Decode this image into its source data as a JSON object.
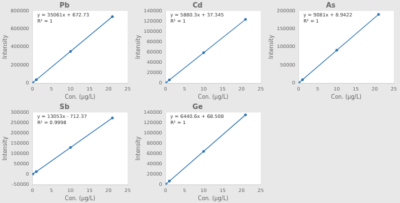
{
  "chart_data": [
    {
      "type": "line",
      "title": "Pb",
      "x_label": "Con. (μg/L)",
      "y_label": "Intensity",
      "annotations": [
        "y = 35061x + 672.73",
        "R² = 1"
      ],
      "series": [
        {
          "type": "line",
          "color": "#2E75B6",
          "x": [
            0,
            21
          ],
          "values": [
            672.73,
            736953.73
          ]
        },
        {
          "type": "scatter",
          "color": "#2E75B6",
          "x": [
            0.1,
            1,
            10,
            21
          ],
          "values": [
            4178.83,
            35733.73,
            351282.73,
            736953.73
          ]
        }
      ],
      "xlim": [
        0,
        25
      ],
      "xticks": [
        0,
        5,
        10,
        15,
        20,
        25
      ],
      "ylim": [
        0,
        800000
      ],
      "yticks": [
        0,
        200000,
        400000,
        600000,
        800000
      ],
      "grid": false
    },
    {
      "type": "line",
      "title": "Cd",
      "x_label": "Con. (μg/L)",
      "y_label": "Intensity",
      "annotations": [
        "y = 5880.3x + 37.345",
        "R² = 1"
      ],
      "series": [
        {
          "type": "line",
          "color": "#2E75B6",
          "x": [
            0,
            21
          ],
          "values": [
            37.345,
            123523.645
          ]
        },
        {
          "type": "scatter",
          "color": "#2E75B6",
          "x": [
            0.1,
            1,
            10,
            21
          ],
          "values": [
            625.375,
            5917.645,
            58840.345,
            123523.645
          ]
        }
      ],
      "xlim": [
        0,
        25
      ],
      "xticks": [
        0,
        5,
        10,
        15,
        20,
        25
      ],
      "ylim": [
        0,
        140000
      ],
      "yticks": [
        0,
        20000,
        40000,
        60000,
        80000,
        100000,
        120000,
        140000
      ],
      "grid": false
    },
    {
      "type": "line",
      "title": "As",
      "x_label": "Con. (μg/L)",
      "y_label": "Intensity",
      "annotations": [
        "y = 9081x + 8.9422",
        "R² = 1"
      ],
      "series": [
        {
          "type": "line",
          "color": "#2E75B6",
          "x": [
            0,
            21
          ],
          "values": [
            8.9422,
            190709.9422
          ]
        },
        {
          "type": "scatter",
          "color": "#2E75B6",
          "x": [
            0.1,
            1,
            10,
            21
          ],
          "values": [
            917.0422,
            9089.9422,
            90818.9422,
            190709.9422
          ]
        }
      ],
      "xlim": [
        0,
        25
      ],
      "xticks": [
        0,
        5,
        10,
        15,
        20,
        25
      ],
      "ylim": [
        0,
        200000
      ],
      "yticks": [
        0,
        50000,
        100000,
        150000,
        200000
      ],
      "grid": false
    },
    {
      "type": "line",
      "title": "Sb",
      "x_label": "Con. (μg/L)",
      "y_label": "Intensity",
      "annotations": [
        "y = 13053x - 712.37",
        "R² = 0.9998"
      ],
      "series": [
        {
          "type": "line",
          "color": "#2E75B6",
          "x": [
            0,
            21
          ],
          "values": [
            -712.37,
            273400.63
          ]
        },
        {
          "type": "scatter",
          "color": "#2E75B6",
          "x": [
            0.1,
            1,
            10,
            21
          ],
          "values": [
            592.93,
            12340.63,
            129817.63,
            273400.63
          ]
        }
      ],
      "xlim": [
        0,
        25
      ],
      "xticks": [
        0,
        5,
        10,
        15,
        20,
        25
      ],
      "ylim": [
        -50000,
        300000
      ],
      "yticks": [
        -50000,
        0,
        50000,
        100000,
        150000,
        200000,
        250000,
        300000
      ],
      "grid": false
    },
    {
      "type": "line",
      "title": "Ge",
      "x_label": "Con. (μg/L)",
      "y_label": "Intensity",
      "annotations": [
        "y = 6440.6x + 68.508",
        "R² = 1"
      ],
      "series": [
        {
          "type": "line",
          "color": "#2E75B6",
          "x": [
            0,
            21
          ],
          "values": [
            68.508,
            135321.108
          ]
        },
        {
          "type": "scatter",
          "color": "#2E75B6",
          "x": [
            0.1,
            1,
            10,
            21
          ],
          "values": [
            712.568,
            6509.108,
            64474.508,
            135321.108
          ]
        }
      ],
      "xlim": [
        0,
        25
      ],
      "xticks": [
        0,
        5,
        10,
        15,
        20,
        25
      ],
      "ylim": [
        0,
        140000
      ],
      "yticks": [
        0,
        20000,
        40000,
        60000,
        80000,
        100000,
        120000,
        140000
      ],
      "grid": false
    }
  ]
}
